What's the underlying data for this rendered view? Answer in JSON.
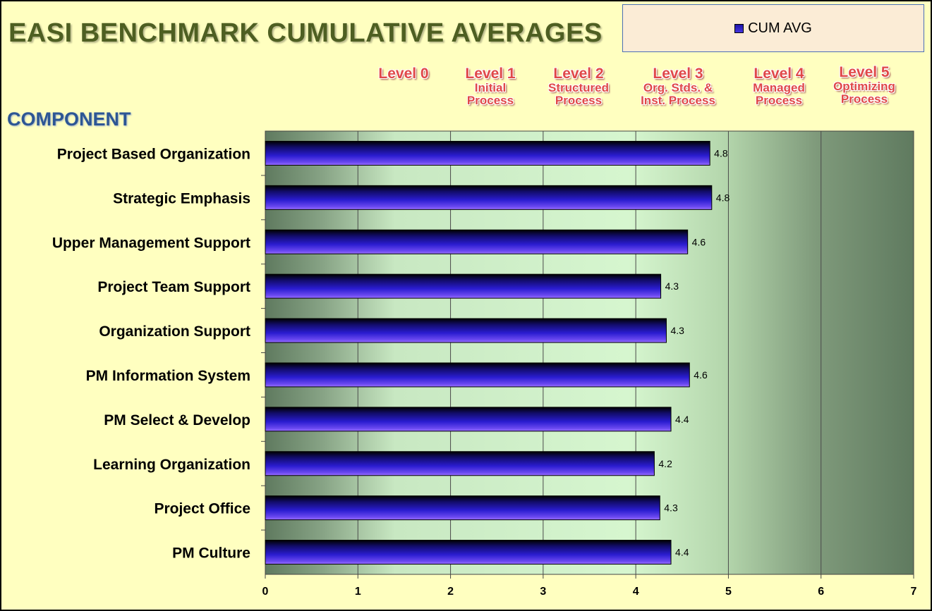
{
  "title": "EASI BENCHMARK CUMULATIVE AVERAGES",
  "legend": {
    "label": "CUM AVG"
  },
  "component_heading": "COMPONENT",
  "levels": [
    {
      "name": "Level 0",
      "desc1": "",
      "desc2": ""
    },
    {
      "name": "Level 1",
      "desc1": "Initial",
      "desc2": "Process"
    },
    {
      "name": "Level 2",
      "desc1": "Structured",
      "desc2": "Process"
    },
    {
      "name": "Level 3",
      "desc1": "Org. Stds. &",
      "desc2": "Inst. Process"
    },
    {
      "name": "Level 4",
      "desc1": "Managed",
      "desc2": "Process"
    },
    {
      "name": "Level 5",
      "desc1": "Optimizing",
      "desc2": "Process"
    }
  ],
  "colors": {
    "bar_dark": "#1c14a8",
    "bar_light": "#6a48f0",
    "level_text": "#e04848",
    "title": "#4e5f22",
    "heading": "#2d5694"
  },
  "chart_data": {
    "type": "bar",
    "orientation": "horizontal",
    "categories": [
      "Project Based Organization",
      "Strategic Emphasis",
      "Upper Management Support",
      "Project Team Support",
      "Organization Support",
      "PM Information System",
      "PM Select & Develop",
      "Learning Organization",
      "Project Office",
      "PM Culture"
    ],
    "series": [
      {
        "name": "CUM AVG",
        "values": [
          4.8,
          4.82,
          4.56,
          4.27,
          4.33,
          4.58,
          4.38,
          4.2,
          4.26,
          4.38
        ],
        "labels": [
          "4.8",
          "4.8",
          "4.6",
          "4.3",
          "4.3",
          "4.6",
          "4.4",
          "4.2",
          "4.3",
          "4.4"
        ]
      }
    ],
    "xlim": [
      0,
      7
    ],
    "xticks": [
      "0",
      "1",
      "2",
      "3",
      "4",
      "5",
      "6",
      "7"
    ],
    "xlabel": "",
    "ylabel": "",
    "grid": true,
    "legend_position": "top-right"
  }
}
